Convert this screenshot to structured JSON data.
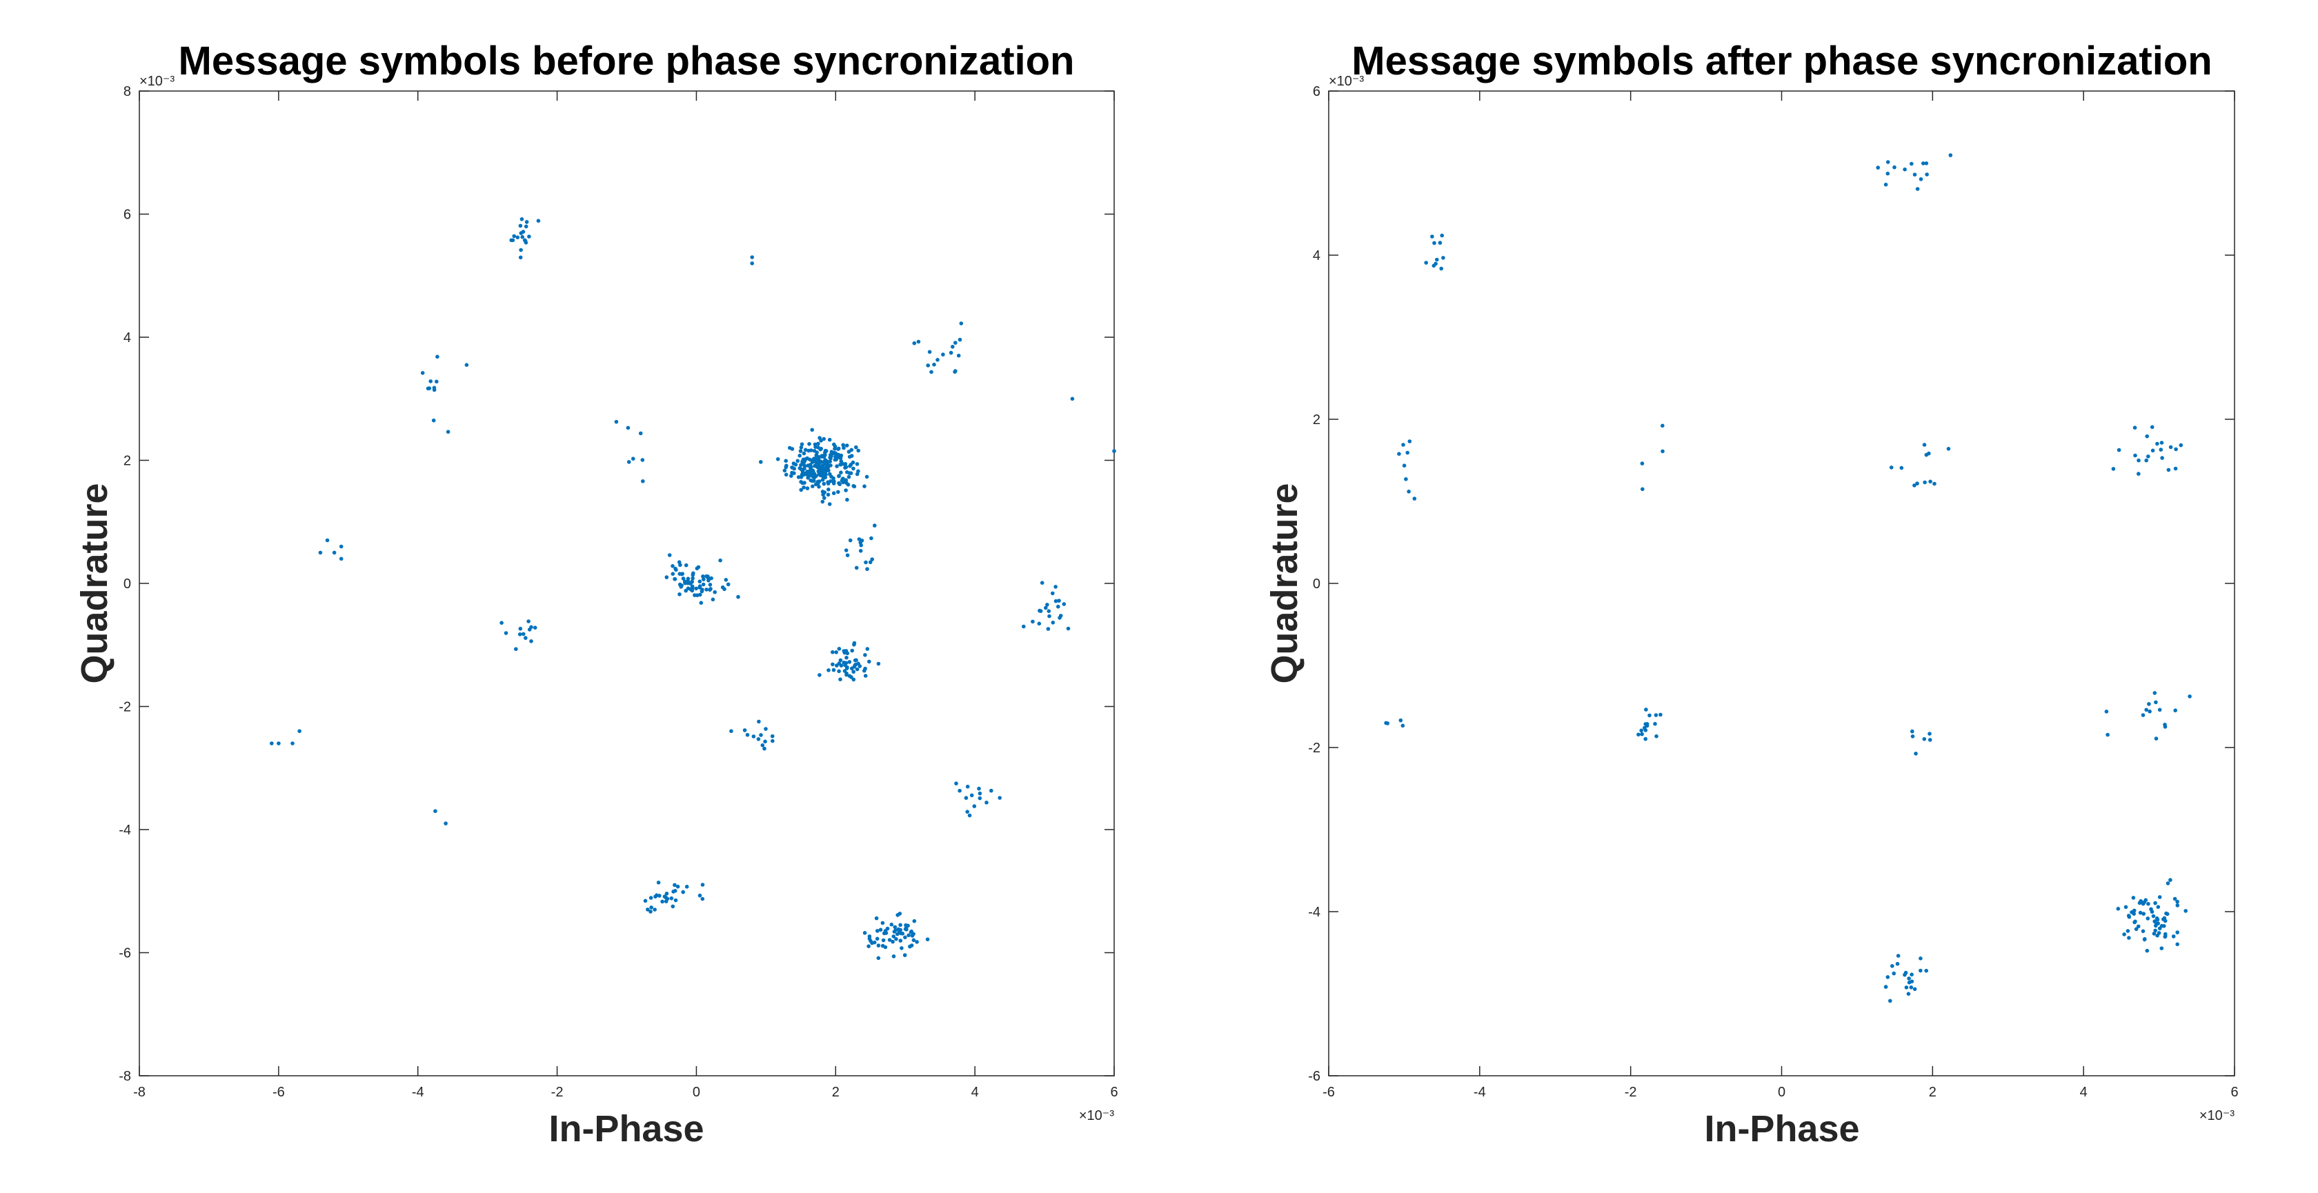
{
  "chart_data": [
    {
      "type": "scatter",
      "title": "Message symbols before phase syncronization",
      "xlabel": "In-Phase",
      "ylabel": "Quadrature",
      "xlim": [
        -0.008,
        0.006
      ],
      "ylim": [
        -0.008,
        0.008
      ],
      "xticks": [
        -8,
        -6,
        -4,
        -2,
        0,
        2,
        4,
        6
      ],
      "yticks": [
        -8,
        -6,
        -4,
        -2,
        0,
        2,
        4,
        6,
        8
      ],
      "x_exponent": "×10⁻³",
      "y_exponent": "×10⁻³",
      "marker_color": "#0072BD",
      "grid": false,
      "clusters": [
        {
          "x": 0.0018,
          "y": 0.0019,
          "n": 260,
          "sx": 0.00025,
          "sy": 0.0002
        },
        {
          "x": 0.0,
          "y": 5e-05,
          "n": 70,
          "sx": 0.0002,
          "sy": 0.00015
        },
        {
          "x": 0.0022,
          "y": -0.0013,
          "n": 50,
          "sx": 0.00015,
          "sy": 0.00015
        },
        {
          "x": 0.00285,
          "y": -0.00575,
          "n": 60,
          "sx": 0.00022,
          "sy": 0.00015
        },
        {
          "x": -0.00045,
          "y": -0.0051,
          "n": 28,
          "sx": 0.0002,
          "sy": 0.00018
        },
        {
          "x": -0.0025,
          "y": 0.00565,
          "n": 18,
          "sx": 0.00012,
          "sy": 0.00018
        },
        {
          "x": 0.00355,
          "y": 0.0038,
          "n": 16,
          "sx": 0.0002,
          "sy": 0.00025
        },
        {
          "x": 0.00235,
          "y": 0.0006,
          "n": 15,
          "sx": 0.00012,
          "sy": 0.00025
        },
        {
          "x": -0.00245,
          "y": -0.0008,
          "n": 12,
          "sx": 0.00012,
          "sy": 0.00012
        },
        {
          "x": 0.0051,
          "y": -0.0004,
          "n": 20,
          "sx": 0.0002,
          "sy": 0.0002
        },
        {
          "x": 0.0039,
          "y": -0.0034,
          "n": 14,
          "sx": 0.0002,
          "sy": 0.00015
        },
        {
          "x": -0.0038,
          "y": 0.0033,
          "n": 10,
          "sx": 8e-05,
          "sy": 0.0004
        },
        {
          "x": -0.0009,
          "y": 0.0023,
          "n": 7,
          "sx": 0.00015,
          "sy": 0.0003
        },
        {
          "x": 0.00095,
          "y": -0.0025,
          "n": 12,
          "sx": 0.00012,
          "sy": 0.00012
        }
      ],
      "points": [
        [
          -0.0061,
          -0.0026
        ],
        [
          -0.006,
          -0.0026
        ],
        [
          -0.0058,
          -0.0026
        ],
        [
          -0.0057,
          -0.0024
        ],
        [
          -0.0054,
          0.0005
        ],
        [
          -0.0053,
          0.0007
        ],
        [
          -0.0052,
          0.0005
        ],
        [
          -0.0051,
          0.0006
        ],
        [
          -0.0051,
          0.0004
        ],
        [
          -0.00375,
          -0.0037
        ],
        [
          -0.0036,
          -0.0039
        ],
        [
          -0.0033,
          0.00355
        ],
        [
          0.0008,
          0.0053
        ],
        [
          0.0008,
          0.0052
        ],
        [
          0.0005,
          -0.0024
        ],
        [
          0.0054,
          0.003
        ],
        [
          0.006,
          0.00215
        ],
        [
          0.0047,
          -0.0007
        ]
      ]
    },
    {
      "type": "scatter",
      "title": "Message symbols after phase syncronization",
      "xlabel": "In-Phase",
      "ylabel": "Quadrature",
      "xlim": [
        -0.006,
        0.006
      ],
      "ylim": [
        -0.006,
        0.006
      ],
      "xticks": [
        -6,
        -4,
        -2,
        0,
        2,
        4,
        6
      ],
      "yticks": [
        -6,
        -4,
        -2,
        0,
        2,
        4,
        6
      ],
      "x_exponent": "×10⁻³",
      "y_exponent": "×10⁻³",
      "marker_color": "#0072BD",
      "grid": false,
      "clusters": [
        {
          "x": 0.0016,
          "y": 0.00505,
          "n": 14,
          "sx": 0.00025,
          "sy": 0.00015
        },
        {
          "x": -0.00455,
          "y": 0.004,
          "n": 10,
          "sx": 8e-05,
          "sy": 0.00015
        },
        {
          "x": -0.00495,
          "y": 0.0015,
          "n": 8,
          "sx": 8e-05,
          "sy": 0.0003
        },
        {
          "x": -0.0017,
          "y": 0.0016,
          "n": 4,
          "sx": 8e-05,
          "sy": 0.00015
        },
        {
          "x": 0.0019,
          "y": 0.0014,
          "n": 11,
          "sx": 0.0002,
          "sy": 0.0002
        },
        {
          "x": 0.0049,
          "y": 0.0016,
          "n": 20,
          "sx": 0.0002,
          "sy": 0.0002
        },
        {
          "x": -0.0051,
          "y": -0.00165,
          "n": 4,
          "sx": 8e-05,
          "sy": 8e-05
        },
        {
          "x": -0.0018,
          "y": -0.00175,
          "n": 15,
          "sx": 0.00015,
          "sy": 0.0001
        },
        {
          "x": 0.0019,
          "y": -0.0019,
          "n": 6,
          "sx": 0.00015,
          "sy": 0.0001
        },
        {
          "x": 0.0049,
          "y": -0.0015,
          "n": 14,
          "sx": 0.00018,
          "sy": 0.00015
        },
        {
          "x": 0.0016,
          "y": -0.0048,
          "n": 20,
          "sx": 0.0002,
          "sy": 0.00018
        },
        {
          "x": 0.0049,
          "y": -0.0041,
          "n": 65,
          "sx": 0.0002,
          "sy": 0.00018
        }
      ],
      "points": []
    }
  ]
}
